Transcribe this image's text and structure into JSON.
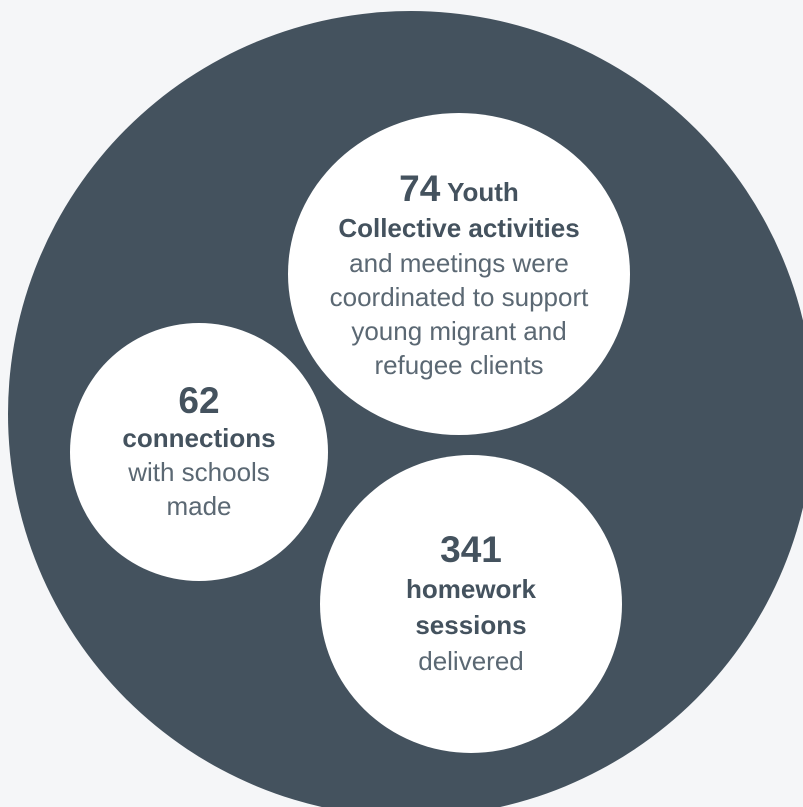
{
  "stats": [
    {
      "id": "youth",
      "number": "74",
      "bold_inline": "Youth",
      "bold_line": "Collective activities",
      "text": "and meetings were coordinated to support young migrant and refugee clients"
    },
    {
      "id": "connections",
      "number": "62",
      "bold_line": "connections",
      "text": "with schools made"
    },
    {
      "id": "homework",
      "number": "341",
      "bold_line": "homework sessions",
      "text": "delivered"
    }
  ],
  "colors": {
    "background": "#f5f6f8",
    "big_circle": "#44525e",
    "bubble": "#ffffff",
    "text_dark": "#44525e",
    "text_light": "#5b6873"
  }
}
